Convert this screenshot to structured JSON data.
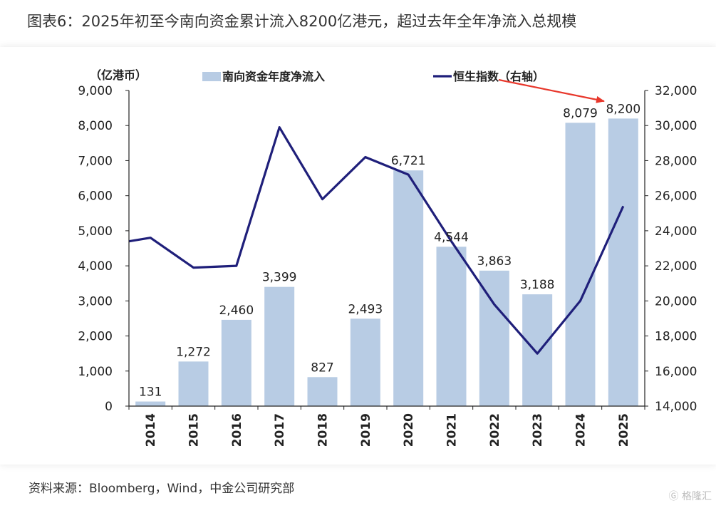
{
  "title": "图表6：2025年初至今南向资金累计流入8200亿港元，超过去年全年净流入总规模",
  "source": "资料来源：Bloomberg，Wind，中金公司研究部",
  "watermark": "格隆汇",
  "colors": {
    "bar": "#b8cce4",
    "line": "#1f1f7a",
    "arrow": "#e8372b",
    "axis": "#222222"
  },
  "chart_data": {
    "type": "bar+line",
    "categories": [
      "2014",
      "2015",
      "2016",
      "2017",
      "2018",
      "2019",
      "2020",
      "2021",
      "2022",
      "2023",
      "2024",
      "2025"
    ],
    "left_axis": {
      "unit": "（亿港币）",
      "range": [
        0,
        9000
      ],
      "ticks": [
        "0",
        "1,000",
        "2,000",
        "3,000",
        "4,000",
        "5,000",
        "6,000",
        "7,000",
        "8,000",
        "9,000"
      ]
    },
    "right_axis": {
      "range": [
        14000,
        32000
      ],
      "ticks": [
        "14,000",
        "16,000",
        "18,000",
        "20,000",
        "22,000",
        "24,000",
        "26,000",
        "28,000",
        "30,000",
        "32,000"
      ]
    },
    "series": [
      {
        "name": "南向资金年度净流入",
        "kind": "bar",
        "axis": "left",
        "values": [
          131,
          1272,
          2460,
          3399,
          827,
          2493,
          6721,
          4544,
          3863,
          3188,
          8079,
          8200
        ],
        "labels": [
          "131",
          "1,272",
          "2,460",
          "3,399",
          "827",
          "2,493",
          "6,721",
          "4,544",
          "3,863",
          "3,188",
          "8,079",
          "8,200"
        ]
      },
      {
        "name": "恒生指数（右轴）",
        "kind": "line",
        "axis": "right",
        "values": [
          23600,
          21900,
          22000,
          29900,
          25800,
          28200,
          27200,
          23400,
          19800,
          17000,
          20000,
          25400
        ]
      }
    ],
    "annotation": "red arrow pointing to 2025 value 8,200"
  }
}
